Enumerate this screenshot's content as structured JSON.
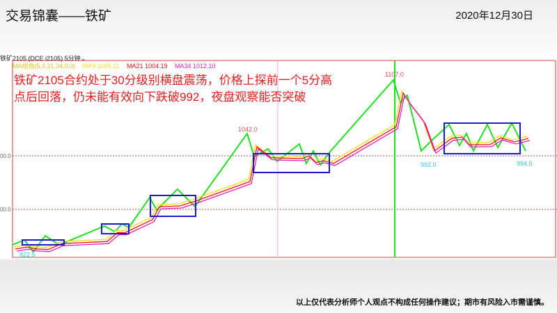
{
  "slide": {
    "title": "交易锦囊——铁矿",
    "date": "2020年12月30日",
    "footer": "以上仅代表分析师个人观点不构成任何操作建议；期市有风险入市需谨慎。"
  },
  "chart_header": {
    "symbol": "铁矿2105",
    "exchange": "(DCE i2105)",
    "period": "5分钟"
  },
  "ma_legend": {
    "group": "MA组合(5,9,21,34,0,0)",
    "ma9": "MA9 1005.11",
    "ma21": "MA21 1004.19",
    "ma34": "MA34 1012.10"
  },
  "comment": "铁矿2105合约处于30分级别横盘震荡，价格上探前一个5分高点后回落，仍未能有效向下跌破992，夜盘观察能否突破",
  "colors": {
    "zigzag": "#22dd22",
    "box": "#1a1acc",
    "ma_red": "#ee1111",
    "ma_magenta": "#e020c0",
    "ma_yellow": "#f0e020",
    "border": "#d04040",
    "annotation_low": "#30c8d8",
    "annotation_high": "#e05050"
  },
  "chart_data": {
    "type": "line",
    "y_tick_labels": [
      "00.0",
      "00.0"
    ],
    "annotations": {
      "low_start": "822.5",
      "high1": "1042.0",
      "high2": "1107.0",
      "low1": "992.0",
      "low2": "994.5"
    },
    "gridlines": "dotted horizontal"
  }
}
